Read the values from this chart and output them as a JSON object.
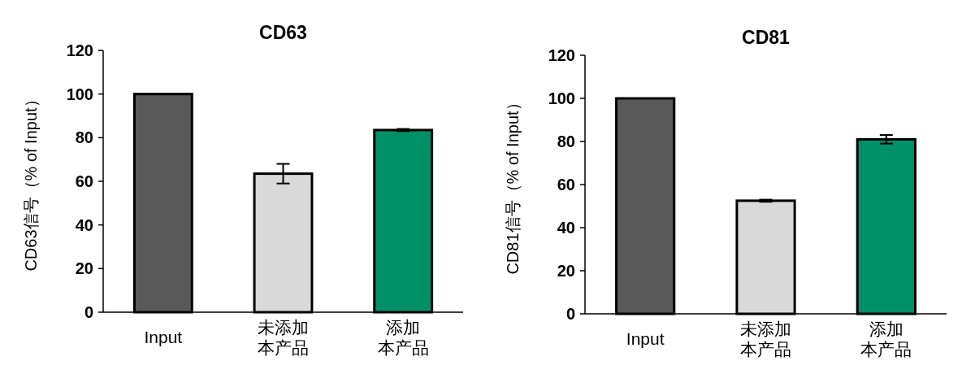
{
  "chart_data": [
    {
      "type": "bar",
      "title": "CD63",
      "ylabel": "CD63信号（% of Input）",
      "categories": [
        "Input",
        "未添加本产品",
        "添加本产品"
      ],
      "values": [
        100,
        63.5,
        83.5
      ],
      "errors": [
        null,
        4.5,
        0.5
      ],
      "colors": [
        "#595959",
        "#d9d9d9",
        "#009068"
      ],
      "ylim": [
        0,
        120
      ],
      "yticks": [
        0,
        20,
        40,
        60,
        80,
        100,
        120
      ],
      "grid": false
    },
    {
      "type": "bar",
      "title": "CD81",
      "ylabel": "CD81信号（% of Input）",
      "categories": [
        "Input",
        "未添加本产品",
        "添加本产品"
      ],
      "values": [
        100,
        52.5,
        81
      ],
      "errors": [
        null,
        0.5,
        2
      ],
      "colors": [
        "#595959",
        "#d9d9d9",
        "#009068"
      ],
      "ylim": [
        0,
        120
      ],
      "yticks": [
        0,
        20,
        40,
        60,
        80,
        100,
        120
      ],
      "grid": false
    }
  ]
}
